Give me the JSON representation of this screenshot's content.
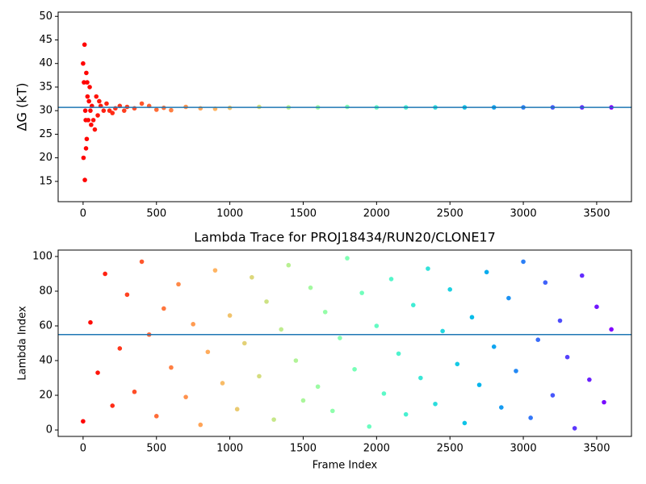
{
  "chart_data": [
    {
      "type": "scatter",
      "ylabel": "ΔG (kT)",
      "colormap": "rainbow_r",
      "x": [
        0,
        3,
        6,
        10,
        12,
        15,
        18,
        20,
        22,
        25,
        28,
        30,
        35,
        40,
        45,
        50,
        55,
        60,
        70,
        80,
        90,
        100,
        110,
        120,
        140,
        160,
        180,
        200,
        220,
        250,
        280,
        300,
        350,
        400,
        450,
        500,
        550,
        600,
        700,
        800,
        900,
        1000,
        1200,
        1400,
        1600,
        1800,
        2000,
        2200,
        2400,
        2600,
        2800,
        3000,
        3200,
        3400,
        3600
      ],
      "values": [
        40,
        20,
        36,
        44,
        15.3,
        30,
        28,
        22,
        38,
        24,
        36,
        33,
        28,
        32,
        35,
        30,
        27,
        31,
        28,
        26,
        33,
        29,
        32,
        31,
        30,
        31.5,
        30,
        29.5,
        30.5,
        31,
        30,
        30.8,
        30.5,
        31.5,
        31,
        30.2,
        30.6,
        30.1,
        30.8,
        30.5,
        30.4,
        30.6,
        30.8,
        30.7,
        30.7,
        30.8,
        30.7,
        30.7,
        30.7,
        30.7,
        30.7,
        30.7,
        30.7,
        30.7,
        30.7
      ],
      "xlim": [
        -170,
        3737
      ],
      "ylim": [
        10.7,
        50.9
      ],
      "xticks": [
        0,
        500,
        1000,
        1500,
        2000,
        2500,
        3000,
        3500
      ],
      "yticks": [
        15,
        20,
        25,
        30,
        35,
        40,
        45,
        50
      ],
      "hline": 30.7,
      "hline_color": "#1f77b4"
    },
    {
      "type": "scatter",
      "title": "Lambda Trace for PROJ18434/RUN20/CLONE17",
      "xlabel": "Frame Index",
      "ylabel": "Lambda Index",
      "colormap": "rainbow_r",
      "x": [
        0,
        50,
        100,
        150,
        200,
        250,
        300,
        350,
        400,
        450,
        500,
        550,
        600,
        650,
        700,
        750,
        800,
        850,
        900,
        950,
        1000,
        1050,
        1100,
        1150,
        1200,
        1250,
        1300,
        1350,
        1400,
        1450,
        1500,
        1550,
        1600,
        1650,
        1700,
        1750,
        1800,
        1850,
        1900,
        1950,
        2000,
        2050,
        2100,
        2150,
        2200,
        2250,
        2300,
        2350,
        2400,
        2450,
        2500,
        2550,
        2600,
        2650,
        2700,
        2750,
        2800,
        2850,
        2900,
        2950,
        3000,
        3050,
        3100,
        3150,
        3200,
        3250,
        3300,
        3350,
        3400,
        3450,
        3500,
        3550,
        3600
      ],
      "values": [
        5,
        62,
        33,
        90,
        14,
        47,
        78,
        22,
        97,
        55,
        8,
        70,
        36,
        84,
        19,
        61,
        3,
        45,
        92,
        27,
        66,
        12,
        50,
        88,
        31,
        74,
        6,
        58,
        95,
        40,
        17,
        82,
        25,
        68,
        11,
        53,
        99,
        35,
        79,
        2,
        60,
        21,
        87,
        44,
        9,
        72,
        30,
        93,
        15,
        57,
        81,
        38,
        4,
        65,
        26,
        91,
        48,
        13,
        76,
        34,
        97,
        7,
        52,
        85,
        20,
        63,
        42,
        1,
        89,
        29,
        71,
        16,
        58
      ],
      "xlim": [
        -170,
        3737
      ],
      "ylim": [
        -3.7,
        103.7
      ],
      "xticks": [
        0,
        500,
        1000,
        1500,
        2000,
        2500,
        3000,
        3500
      ],
      "yticks": [
        0,
        20,
        40,
        60,
        80,
        100
      ],
      "hline": 55,
      "hline_color": "#1f77b4"
    }
  ]
}
